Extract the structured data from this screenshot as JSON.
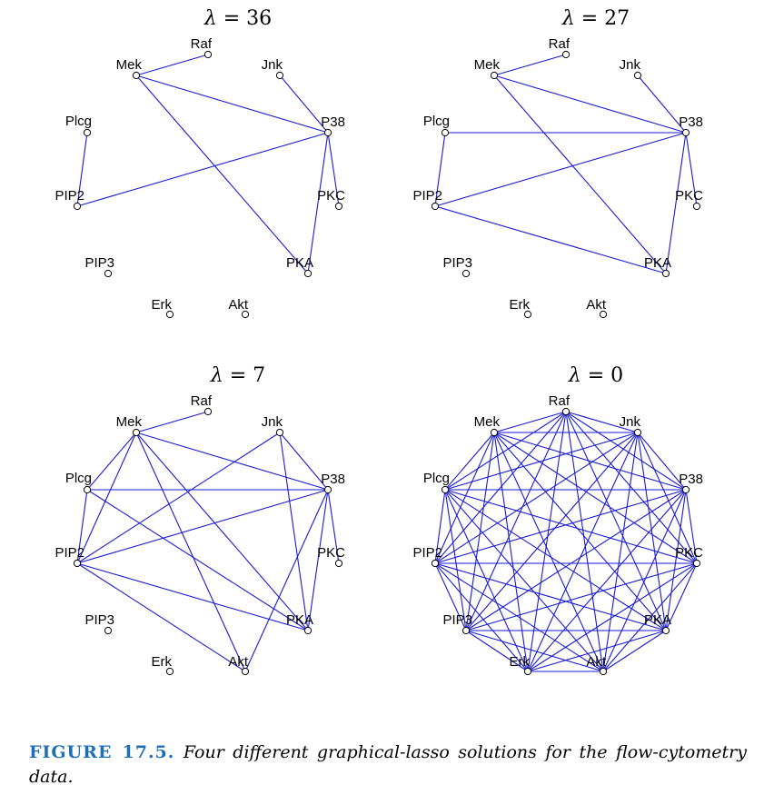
{
  "nodes": [
    "Raf",
    "Mek",
    "Jnk",
    "Plcg",
    "P38",
    "PIP2",
    "PKC",
    "PIP3",
    "PKA",
    "Erk",
    "Akt"
  ],
  "panels": [
    {
      "lambda_symbol": "λ",
      "lambda_value": "= 36",
      "edges": [
        [
          "Mek",
          "Raf"
        ],
        [
          "Mek",
          "P38"
        ],
        [
          "Mek",
          "PKA"
        ],
        [
          "Jnk",
          "P38"
        ],
        [
          "Plcg",
          "PIP2"
        ],
        [
          "PIP2",
          "P38"
        ],
        [
          "P38",
          "PKC"
        ],
        [
          "P38",
          "PKA"
        ]
      ]
    },
    {
      "lambda_symbol": "λ",
      "lambda_value": "= 27",
      "edges": [
        [
          "Mek",
          "Raf"
        ],
        [
          "Mek",
          "P38"
        ],
        [
          "Mek",
          "PKA"
        ],
        [
          "Jnk",
          "P38"
        ],
        [
          "Plcg",
          "PIP2"
        ],
        [
          "Plcg",
          "P38"
        ],
        [
          "PIP2",
          "P38"
        ],
        [
          "PIP2",
          "PKA"
        ],
        [
          "P38",
          "PKC"
        ],
        [
          "P38",
          "PKA"
        ]
      ]
    },
    {
      "lambda_symbol": "λ",
      "lambda_value": "= 7",
      "edges": [
        [
          "Mek",
          "Raf"
        ],
        [
          "Mek",
          "P38"
        ],
        [
          "Mek",
          "PKA"
        ],
        [
          "Mek",
          "Plcg"
        ],
        [
          "Mek",
          "PIP2"
        ],
        [
          "Mek",
          "Akt"
        ],
        [
          "Jnk",
          "P38"
        ],
        [
          "Jnk",
          "PIP2"
        ],
        [
          "Jnk",
          "PKA"
        ],
        [
          "Plcg",
          "PIP2"
        ],
        [
          "Plcg",
          "P38"
        ],
        [
          "Plcg",
          "PKA"
        ],
        [
          "PIP2",
          "P38"
        ],
        [
          "PIP2",
          "PKA"
        ],
        [
          "PIP2",
          "Akt"
        ],
        [
          "P38",
          "PKC"
        ],
        [
          "P38",
          "PKA"
        ],
        [
          "P38",
          "Akt"
        ]
      ]
    },
    {
      "lambda_symbol": "λ",
      "lambda_value": "= 0",
      "complete_graph": true,
      "edges": []
    }
  ],
  "caption": {
    "label": "FIGURE 17.5.",
    "text": "Four different graphical-lasso solutions for the flow-cytometry data."
  }
}
